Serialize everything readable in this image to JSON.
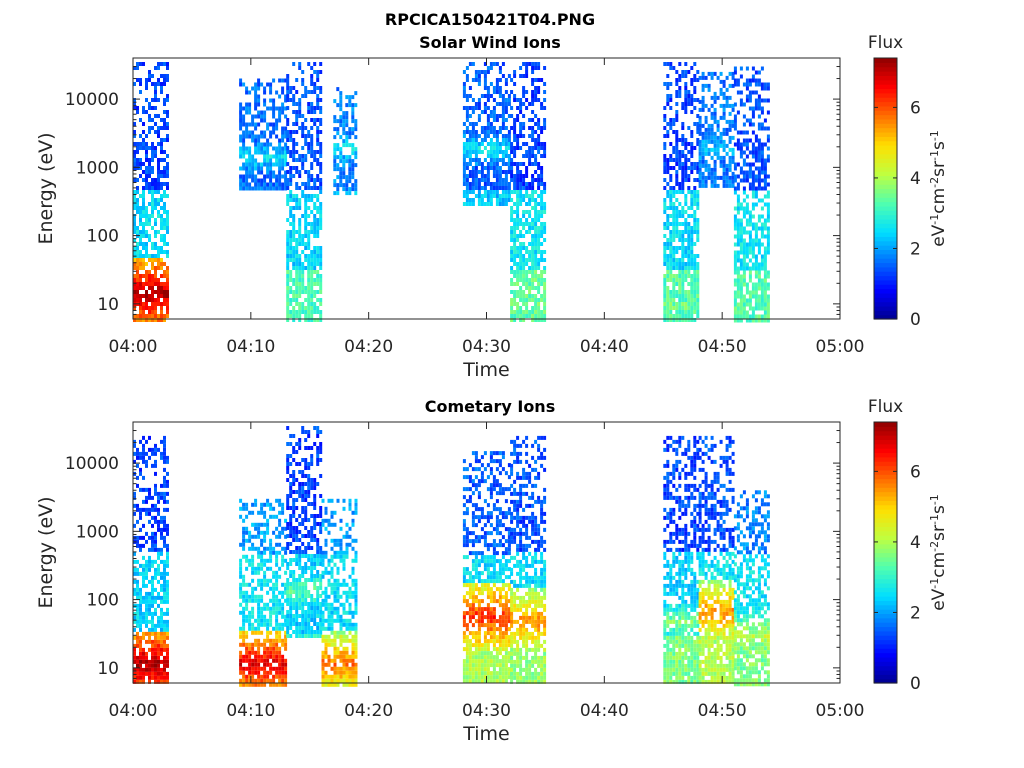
{
  "figure": {
    "title": "RPCICA150421T04.PNG"
  },
  "colormap": [
    "#00008f",
    "#0000ff",
    "#0070ff",
    "#00dfff",
    "#50ffaf",
    "#bfff40",
    "#ffdf00",
    "#ff7000",
    "#ff0000",
    "#8f0000"
  ],
  "chart_data": [
    {
      "type": "heatmap",
      "title": "Solar Wind Ions",
      "xlabel": "Time",
      "ylabel": "Energy (eV)",
      "x_ticks": [
        "04:00",
        "04:10",
        "04:20",
        "04:30",
        "04:40",
        "04:50",
        "05:00"
      ],
      "xlim": [
        "04:00",
        "05:00"
      ],
      "y_scale": "log",
      "y_ticks": [
        10,
        100,
        1000,
        10000
      ],
      "y_tick_labels": [
        "10",
        "100",
        "1000",
        "10000"
      ],
      "ylim": [
        6,
        40000
      ],
      "colorbar": {
        "label_top": "Flux",
        "unit_parts": [
          "eV",
          "-1",
          "cm",
          "-2",
          "sr",
          "-1",
          "s",
          "-1"
        ],
        "range": [
          0,
          7.4
        ],
        "ticks": [
          0,
          2,
          4,
          6
        ]
      },
      "series": [
        {
          "start": "04:00",
          "end": "04:03",
          "e_min": 6,
          "e_max": 35000,
          "peak_flux": 7.2,
          "peak_energy": 15,
          "low_flux": 3.0,
          "mid_flux": 2.5,
          "high_flux": 1.3
        },
        {
          "start": "04:09",
          "end": "04:13",
          "e_min": 500,
          "e_max": 20000,
          "peak_flux": 2.6,
          "peak_energy": 1500,
          "low_flux": 2.5,
          "mid_flux": 2.2,
          "high_flux": 1.6
        },
        {
          "start": "04:13",
          "end": "04:16",
          "e_min": 6,
          "e_max": 35000,
          "peak_flux": 3.3,
          "peak_energy": 8,
          "low_flux": 3.2,
          "mid_flux": 2.4,
          "high_flux": 1.4
        },
        {
          "start": "04:17",
          "end": "04:19",
          "e_min": 400,
          "e_max": 15000,
          "peak_flux": 2.6,
          "peak_energy": 2000,
          "low_flux": 2.5,
          "mid_flux": 2.2,
          "high_flux": 1.8
        },
        {
          "start": "04:28",
          "end": "04:32",
          "e_min": 300,
          "e_max": 35000,
          "peak_flux": 2.6,
          "peak_energy": 2000,
          "low_flux": 2.5,
          "mid_flux": 2.3,
          "high_flux": 1.5
        },
        {
          "start": "04:32",
          "end": "04:35",
          "e_min": 6,
          "e_max": 35000,
          "peak_flux": 3.6,
          "peak_energy": 10,
          "low_flux": 3.4,
          "mid_flux": 2.6,
          "high_flux": 1.3
        },
        {
          "start": "04:45",
          "end": "04:48",
          "e_min": 6,
          "e_max": 35000,
          "peak_flux": 3.6,
          "peak_energy": 10,
          "low_flux": 3.3,
          "mid_flux": 2.5,
          "high_flux": 1.3
        },
        {
          "start": "04:48",
          "end": "04:51",
          "e_min": 500,
          "e_max": 25000,
          "peak_flux": 2.4,
          "peak_energy": 2000,
          "low_flux": 2.3,
          "mid_flux": 2.1,
          "high_flux": 1.7
        },
        {
          "start": "04:51",
          "end": "04:54",
          "e_min": 6,
          "e_max": 30000,
          "peak_flux": 3.4,
          "peak_energy": 10,
          "low_flux": 3.3,
          "mid_flux": 2.6,
          "high_flux": 1.4
        }
      ]
    },
    {
      "type": "heatmap",
      "title": "Cometary Ions",
      "xlabel": "Time",
      "ylabel": "Energy (eV)",
      "x_ticks": [
        "04:00",
        "04:10",
        "04:20",
        "04:30",
        "04:40",
        "04:50",
        "05:00"
      ],
      "xlim": [
        "04:00",
        "05:00"
      ],
      "y_scale": "log",
      "y_ticks": [
        10,
        100,
        1000,
        10000
      ],
      "y_tick_labels": [
        "10",
        "100",
        "1000",
        "10000"
      ],
      "ylim": [
        6,
        40000
      ],
      "colorbar": {
        "label_top": "Flux",
        "unit_parts": [
          "eV",
          "-1",
          "cm",
          "-2",
          "sr",
          "-1",
          "s",
          "-1"
        ],
        "range": [
          0,
          7.4
        ],
        "ticks": [
          0,
          2,
          4,
          6
        ]
      },
      "series": [
        {
          "start": "04:00",
          "end": "04:03",
          "e_min": 6,
          "e_max": 25000,
          "peak_flux": 7.2,
          "peak_energy": 12,
          "low_flux": 3.8,
          "mid_flux": 2.4,
          "high_flux": 1.3
        },
        {
          "start": "04:09",
          "end": "04:13",
          "e_min": 6,
          "e_max": 3000,
          "peak_flux": 6.8,
          "peak_energy": 12,
          "low_flux": 4.8,
          "mid_flux": 2.6,
          "high_flux": 2.0
        },
        {
          "start": "04:13",
          "end": "04:16",
          "e_min": 30,
          "e_max": 35000,
          "peak_flux": 3.4,
          "peak_energy": 150,
          "low_flux": 3.0,
          "mid_flux": 2.4,
          "high_flux": 1.3
        },
        {
          "start": "04:16",
          "end": "04:19",
          "e_min": 6,
          "e_max": 3000,
          "peak_flux": 5.8,
          "peak_energy": 12,
          "low_flux": 4.2,
          "mid_flux": 2.5,
          "high_flux": 2.0
        },
        {
          "start": "04:28",
          "end": "04:32",
          "e_min": 6,
          "e_max": 15000,
          "peak_flux": 6.3,
          "peak_energy": 60,
          "low_flux": 4.0,
          "mid_flux": 2.5,
          "high_flux": 1.5
        },
        {
          "start": "04:32",
          "end": "04:35",
          "e_min": 6,
          "e_max": 25000,
          "peak_flux": 5.6,
          "peak_energy": 50,
          "low_flux": 3.8,
          "mid_flux": 2.5,
          "high_flux": 1.4
        },
        {
          "start": "04:45",
          "end": "04:48",
          "e_min": 6,
          "e_max": 25000,
          "peak_flux": 3.6,
          "peak_energy": 50,
          "low_flux": 3.6,
          "mid_flux": 2.4,
          "high_flux": 1.3
        },
        {
          "start": "04:48",
          "end": "04:51",
          "e_min": 6,
          "e_max": 25000,
          "peak_flux": 5.6,
          "peak_energy": 70,
          "low_flux": 4.0,
          "mid_flux": 2.6,
          "high_flux": 1.4
        },
        {
          "start": "04:51",
          "end": "04:54",
          "e_min": 6,
          "e_max": 4000,
          "peak_flux": 4.2,
          "peak_energy": 30,
          "low_flux": 3.6,
          "mid_flux": 2.6,
          "high_flux": 1.8
        }
      ]
    }
  ]
}
